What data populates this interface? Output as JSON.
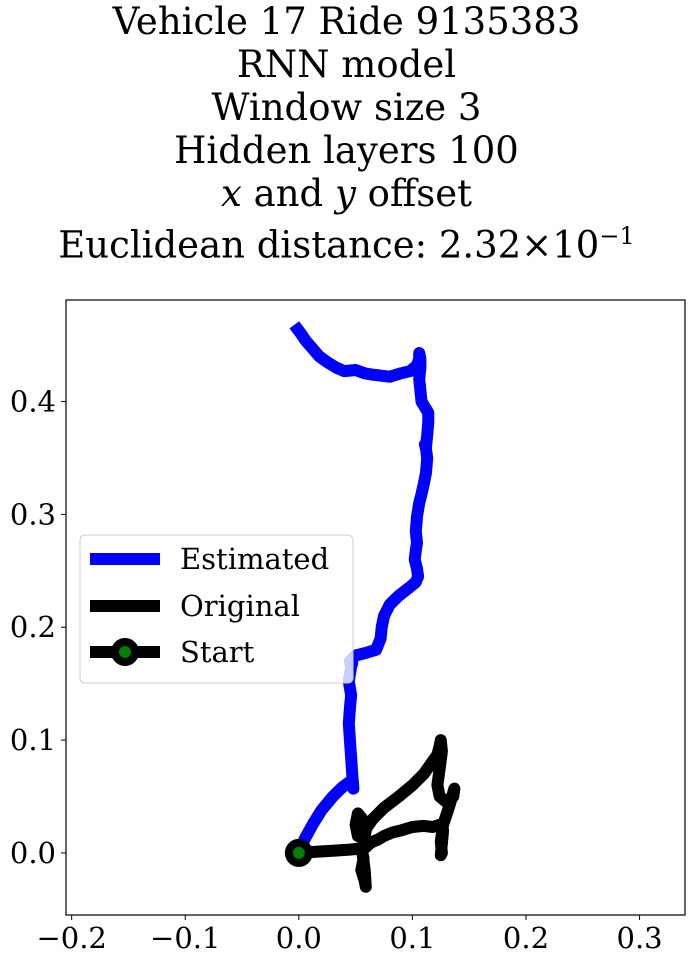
{
  "title": {
    "line1": "Vehicle 17 Ride 9135383",
    "line2": "RNN model",
    "line3": "Window size 3",
    "line4": "Hidden layers 100",
    "line5_var_x": "x",
    "line5_mid": " and ",
    "line5_var_y": "y",
    "line5_end": " offset",
    "line6_prefix": "Euclidean distance: ",
    "line6_mantissa": "2.32",
    "line6_times": "×",
    "line6_base": "10",
    "line6_exp": "−1"
  },
  "chart_data": {
    "type": "line",
    "xlim": [
      -0.205,
      0.34
    ],
    "ylim": [
      -0.055,
      0.49
    ],
    "xticks": [
      -0.2,
      -0.1,
      0.0,
      0.1,
      0.2,
      0.3
    ],
    "xtick_labels": [
      "−0.2",
      "−0.1",
      "0.0",
      "0.1",
      "0.2",
      "0.3"
    ],
    "yticks": [
      0.0,
      0.1,
      0.2,
      0.3,
      0.4
    ],
    "ytick_labels": [
      "0.0",
      "0.1",
      "0.2",
      "0.3",
      "0.4"
    ],
    "grid": false,
    "legend_position": "center-left",
    "series": [
      {
        "name": "Estimated",
        "color": "#0000ff",
        "x": [
          0.0,
          0.005,
          0.012,
          0.02,
          0.03,
          0.038,
          0.045,
          0.048,
          0.047,
          0.046,
          0.045,
          0.044,
          0.045,
          0.046,
          0.044,
          0.046,
          0.045,
          0.047,
          0.046,
          0.047,
          0.05,
          0.058,
          0.068,
          0.072,
          0.073,
          0.075,
          0.08,
          0.088,
          0.097,
          0.103,
          0.105,
          0.104,
          0.102,
          0.103,
          0.104,
          0.103,
          0.104,
          0.106,
          0.108,
          0.11,
          0.112,
          0.113,
          0.112,
          0.111,
          0.112,
          0.113,
          0.114,
          0.114,
          0.108,
          0.107,
          0.106,
          0.107,
          0.107,
          0.106,
          0.106,
          0.104,
          0.098,
          0.09,
          0.08,
          0.072,
          0.064,
          0.058,
          0.05,
          0.04,
          0.033,
          0.025,
          0.018,
          0.012,
          0.006,
          0.002,
          -0.004
        ],
        "y": [
          0.0,
          0.012,
          0.025,
          0.038,
          0.05,
          0.058,
          0.063,
          0.057,
          0.07,
          0.085,
          0.1,
          0.115,
          0.128,
          0.14,
          0.152,
          0.165,
          0.17,
          0.168,
          0.165,
          0.172,
          0.175,
          0.177,
          0.18,
          0.19,
          0.2,
          0.21,
          0.22,
          0.228,
          0.235,
          0.24,
          0.245,
          0.252,
          0.26,
          0.268,
          0.275,
          0.285,
          0.298,
          0.31,
          0.318,
          0.327,
          0.337,
          0.35,
          0.358,
          0.362,
          0.36,
          0.37,
          0.382,
          0.39,
          0.4,
          0.41,
          0.42,
          0.43,
          0.438,
          0.443,
          0.438,
          0.432,
          0.427,
          0.425,
          0.422,
          0.423,
          0.424,
          0.425,
          0.428,
          0.427,
          0.43,
          0.435,
          0.44,
          0.447,
          0.454,
          0.46,
          0.468
        ]
      },
      {
        "name": "Original",
        "color": "#000000",
        "x": [
          0.0,
          0.015,
          0.03,
          0.045,
          0.055,
          0.057,
          0.055,
          0.058,
          0.059,
          0.058,
          0.056,
          0.057,
          0.059,
          0.056,
          0.052,
          0.05,
          0.052,
          0.058,
          0.065,
          0.075,
          0.088,
          0.1,
          0.11,
          0.117,
          0.122,
          0.124,
          0.125,
          0.126,
          0.124,
          0.122,
          0.124,
          0.13,
          0.136,
          0.137,
          0.132,
          0.127,
          0.125,
          0.126,
          0.125,
          0.127,
          0.124,
          0.118,
          0.11,
          0.1,
          0.09,
          0.082,
          0.075,
          0.07,
          0.065,
          0.062,
          0.06,
          0.058
        ],
        "y": [
          0.0,
          0.001,
          0.002,
          0.003,
          0.004,
          -0.005,
          -0.015,
          -0.025,
          -0.03,
          -0.015,
          0.0,
          0.01,
          0.02,
          0.03,
          0.035,
          0.025,
          0.015,
          0.02,
          0.03,
          0.04,
          0.05,
          0.06,
          0.07,
          0.08,
          0.087,
          0.095,
          0.1,
          0.09,
          0.075,
          0.06,
          0.05,
          0.045,
          0.05,
          0.057,
          0.04,
          0.025,
          0.01,
          0.0,
          -0.002,
          0.02,
          0.025,
          0.023,
          0.024,
          0.023,
          0.02,
          0.018,
          0.015,
          0.012,
          0.01,
          0.008,
          0.006,
          0.004
        ]
      }
    ],
    "start_point": {
      "name": "Start",
      "x": 0.0,
      "y": 0.0,
      "marker_face": "#008000",
      "marker_edge": "#000000"
    },
    "legend": {
      "estimated": "Estimated",
      "original": "Original",
      "start": "Start"
    }
  }
}
